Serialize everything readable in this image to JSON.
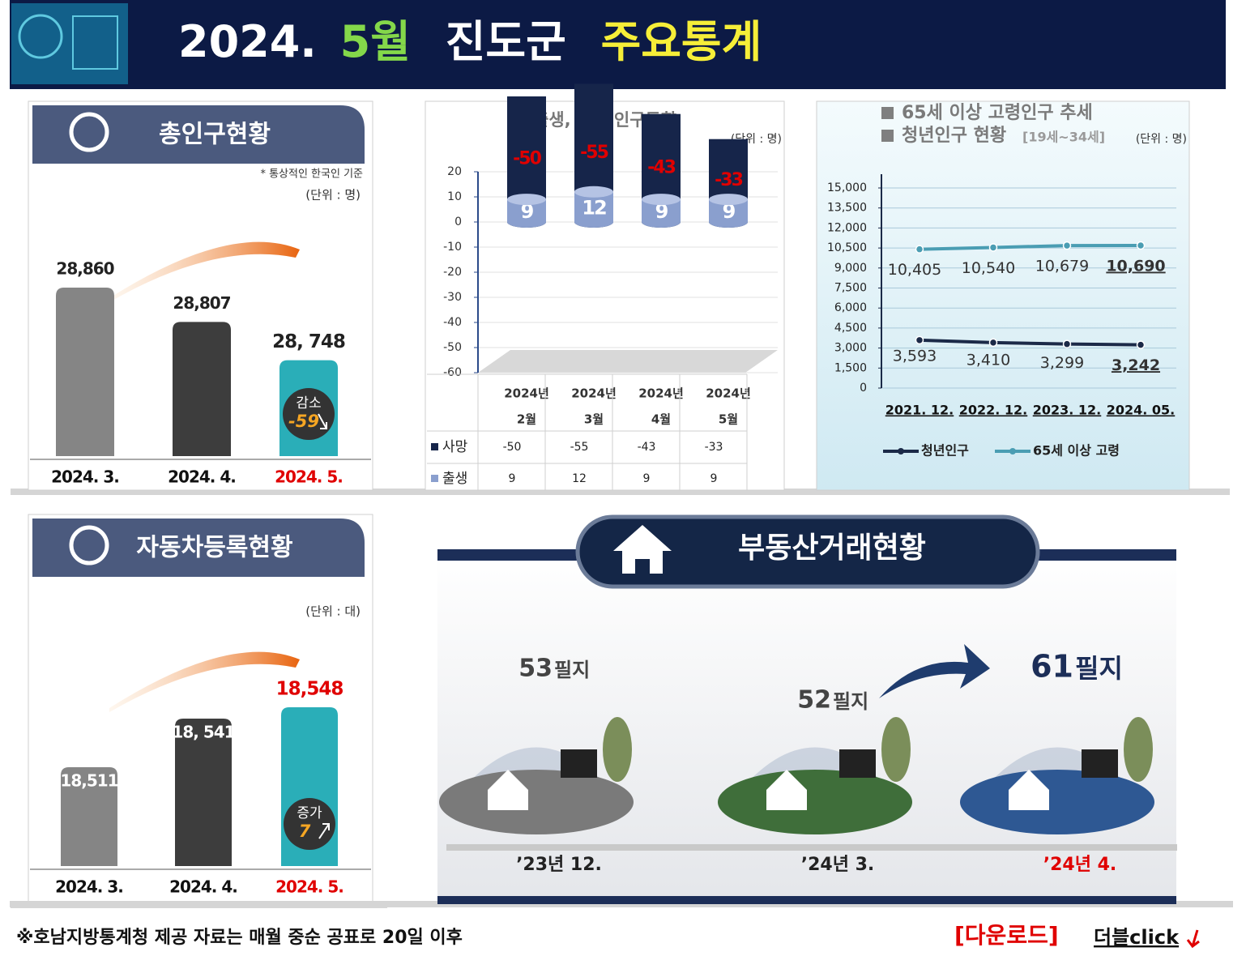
{
  "header": {
    "year": "2024.",
    "month": "5월",
    "region": "진도군",
    "title": "주요통계"
  },
  "footer": {
    "note": "※호남지방통계청 제공 자료는 매월 중순 공표로 20일 이후",
    "download": "[다운로드]",
    "click": "더블click"
  },
  "chart_data": [
    {
      "type": "bar",
      "title": "총인구현황",
      "note": "* 통상적인 한국인 기준",
      "unit": "(단위 : 명)",
      "categories": [
        "2024. 3.",
        "2024. 4.",
        "2024. 5."
      ],
      "values": [
        28860,
        28807,
        28748
      ],
      "value_labels": [
        "28,860",
        "28,807",
        "28, 748"
      ],
      "colors": [
        "#858585",
        "#3d3d3d",
        "#2aaeb8"
      ],
      "highlight_color": "#e00000",
      "ylim": [
        28600,
        28900
      ],
      "change_label": "감소",
      "change": -59
    },
    {
      "type": "bar",
      "title": "자동차등록현황",
      "unit": "(단위 : 대)",
      "categories": [
        "2024. 3.",
        "2024. 4.",
        "2024. 5."
      ],
      "values": [
        18511,
        18541,
        18548
      ],
      "value_labels": [
        "18,511",
        "18, 541",
        "18,548"
      ],
      "colors": [
        "#858585",
        "#3d3d3d",
        "#2aaeb8"
      ],
      "highlight_color": "#e00000",
      "ylim": [
        18450,
        18560
      ],
      "change_label": "증가",
      "change": 7
    },
    {
      "type": "stacked_bar",
      "title": "출생, 사망 인구동향",
      "unit": "(단위 : 명)",
      "categories": [
        [
          "2024년",
          "2월"
        ],
        [
          "2024년",
          "3월"
        ],
        [
          "2024년",
          "4월"
        ],
        [
          "2024년",
          "5월"
        ]
      ],
      "series": [
        {
          "name": "사망",
          "color": "#16254a",
          "values": [
            -50,
            -55,
            -43,
            -33
          ]
        },
        {
          "name": "출생",
          "color": "#8a9fce",
          "values": [
            9,
            12,
            9,
            9
          ]
        }
      ],
      "ylim": [
        -60,
        20
      ],
      "yticks": [
        -60,
        -50,
        -40,
        -30,
        -20,
        -10,
        0,
        10,
        20
      ],
      "grid": true
    },
    {
      "type": "line",
      "title": "65세 이상 고령인구 추세",
      "title2": "청년인구 현황",
      "subtitle": "[19세~34세]",
      "unit": "(단위 : 명)",
      "categories": [
        "2021. 12.",
        "2022. 12.",
        "2023. 12.",
        "2024. 05."
      ],
      "series": [
        {
          "name": "청년인구",
          "color": "#1b2a48",
          "values": [
            3593,
            3410,
            3299,
            3242
          ],
          "value_labels": [
            "3,593",
            "3,410",
            "3,299",
            "3,242"
          ]
        },
        {
          "name": "65세 이상 고령",
          "color": "#4a9db3",
          "values": [
            10405,
            10540,
            10679,
            10690
          ],
          "value_labels": [
            "10,405",
            "10,540",
            "10,679",
            "10,690"
          ]
        }
      ],
      "ylim": [
        0,
        15000
      ],
      "yticks": [
        0,
        {
          "value": 1500,
          "label": "1,500"
        },
        {
          "value": 3000,
          "label": "3,000"
        },
        {
          "value": 4500,
          "label": "4,500"
        },
        {
          "value": 6000,
          "label": "6,000"
        },
        {
          "value": 7500,
          "label": "7,500"
        },
        {
          "value": 9000,
          "label": "9,000"
        },
        {
          "value": 10500,
          "label": "10,500"
        },
        {
          "value": 12000,
          "label": "12,000"
        },
        {
          "value": 13500,
          "label": "13,500"
        },
        {
          "value": 15000,
          "label": "15,000"
        }
      ],
      "grid": true
    },
    {
      "type": "pictogram",
      "title": "부동산거래현황",
      "unit": "필지",
      "categories": [
        "’23년 12.",
        "’24년 3.",
        "’24년 4."
      ],
      "values": [
        53,
        52,
        61
      ],
      "colors": [
        "#7a7a7a",
        "#3f6e3a",
        "#2e5893"
      ],
      "highlight_color": "#e00000"
    }
  ]
}
